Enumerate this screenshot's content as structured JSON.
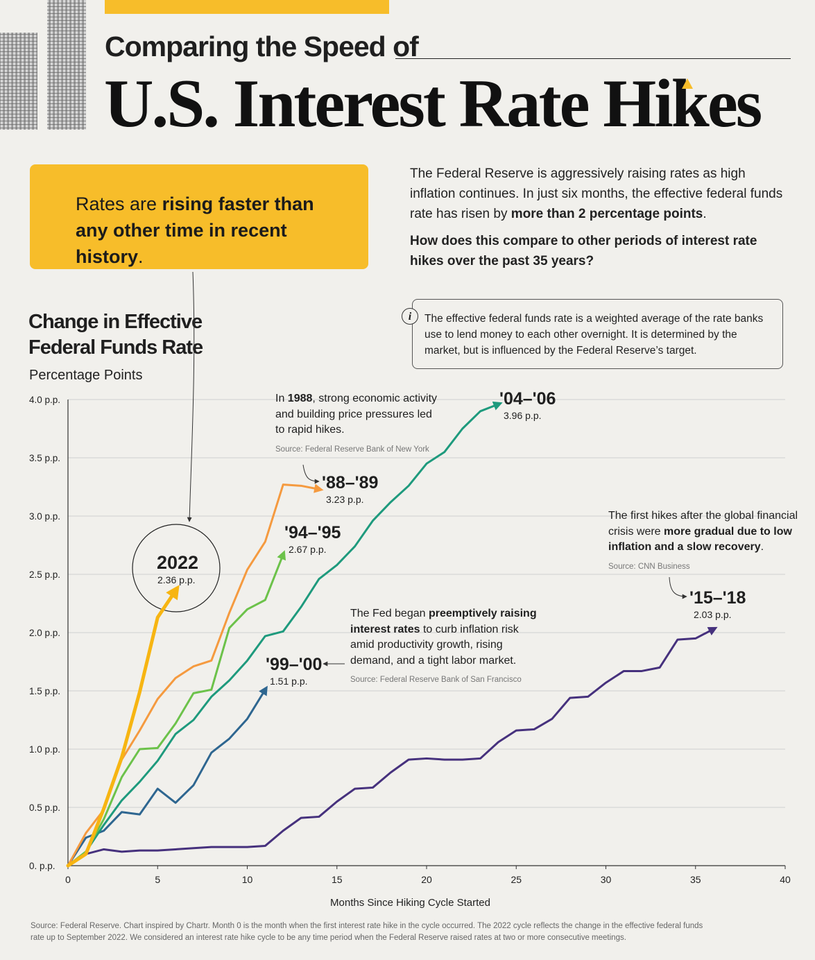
{
  "header": {
    "subtitle": "Comparing the Speed of",
    "title": "U.S. Interest Rate Hikes"
  },
  "callout": {
    "pre": "Rates are ",
    "bold": "rising faster than any other time in recent history",
    "post": "."
  },
  "intro": {
    "p1_pre": "The Federal Reserve is aggressively raising rates as high inflation continues. In just six months, the effective federal funds rate has risen by ",
    "p1_bold": "more than 2 percentage points",
    "p1_post": ".",
    "question": "How does this compare to other periods of interest rate hikes over the past 35 years?"
  },
  "info": {
    "icon": "i",
    "text": "The effective federal funds rate is a weighted average of the rate banks use to lend money to each other overnight. It is determined by the market, but is influenced by the Federal Reserve’s target."
  },
  "chart_title": {
    "line1": "Change in Effective",
    "line2": "Federal Funds Rate",
    "unit": "Percentage Points"
  },
  "annotations": {
    "y1988": {
      "pre": "In ",
      "bold": "1988",
      "post": ", strong economic activity and building price pressures led to rapid hikes.",
      "source": "Source: Federal Reserve Bank of New York"
    },
    "y1999": {
      "pre": "The Fed began ",
      "bold": "preemptively raising interest rates",
      "post": " to curb inflation risk amid productivity growth, rising demand, and a tight labor market.",
      "source": "Source: Federal Reserve Bank of San Francisco"
    },
    "y2015": {
      "pre": "The first hikes after the global financial crisis were ",
      "bold": "more gradual due to low inflation and a slow recovery",
      "post": ".",
      "source": "Source: CNN Business"
    }
  },
  "colors": {
    "c2022": "#f7b512",
    "c1988": "#f59a3f",
    "c1994": "#6cc24a",
    "c2004": "#1e9a7d",
    "c1999": "#2e6690",
    "c2015": "#46317d",
    "accent": "#f7bd2a",
    "grid": "#cfcfcf",
    "axis": "#333333"
  },
  "chart_data": {
    "type": "line",
    "title": "Change in Effective Federal Funds Rate",
    "ylabel": "Percentage Points",
    "xlabel": "Months Since Hiking Cycle Started",
    "xlim": [
      0,
      40
    ],
    "ylim": [
      0,
      4
    ],
    "x_ticks": [
      0,
      5,
      10,
      15,
      20,
      25,
      30,
      35,
      40
    ],
    "x_tick_labels": [
      "0",
      "5",
      "10",
      "15",
      "20",
      "25",
      "30",
      "35",
      "40"
    ],
    "y_ticks": [
      0,
      0.5,
      1,
      1.5,
      2,
      2.5,
      3,
      3.5,
      4
    ],
    "y_tick_labels": [
      "0. p.p.",
      "0.5 p.p.",
      "1.0 p.p.",
      "1.5 p.p.",
      "2.0 p.p.",
      "2.5 p.p.",
      "3.0 p.p.",
      "3.5 p.p.",
      "4.0 p.p."
    ],
    "series": [
      {
        "name": "'15–'18",
        "label": "2.03 p.p.",
        "color_key": "c2015",
        "values": [
          0,
          0.1,
          0.14,
          0.12,
          0.13,
          0.13,
          0.14,
          0.15,
          0.16,
          0.16,
          0.16,
          0.17,
          0.3,
          0.41,
          0.42,
          0.55,
          0.66,
          0.67,
          0.8,
          0.91,
          0.92,
          0.91,
          0.91,
          0.92,
          1.06,
          1.16,
          1.17,
          1.26,
          1.44,
          1.45,
          1.57,
          1.67,
          1.67,
          1.7,
          1.94,
          1.95,
          2.03
        ]
      },
      {
        "name": "'99–'00",
        "label": "1.51 p.p.",
        "color_key": "c1999",
        "values": [
          0,
          0.24,
          0.3,
          0.46,
          0.44,
          0.66,
          0.54,
          0.69,
          0.97,
          1.09,
          1.26,
          1.51
        ]
      },
      {
        "name": "'04–'06",
        "label": "3.96 p.p.",
        "color_key": "c2004",
        "values": [
          0,
          0.12,
          0.35,
          0.56,
          0.72,
          0.9,
          1.13,
          1.25,
          1.45,
          1.59,
          1.76,
          1.97,
          2.01,
          2.22,
          2.46,
          2.58,
          2.74,
          2.96,
          3.12,
          3.26,
          3.45,
          3.55,
          3.75,
          3.9,
          3.96
        ]
      },
      {
        "name": "'94–'95",
        "label": "2.67 p.p.",
        "color_key": "c1994",
        "values": [
          0,
          0.12,
          0.4,
          0.76,
          1.0,
          1.01,
          1.22,
          1.48,
          1.51,
          2.04,
          2.2,
          2.28,
          2.67
        ]
      },
      {
        "name": "'88–'89",
        "label": "3.23 p.p.",
        "color_key": "c1988",
        "values": [
          0,
          0.28,
          0.48,
          0.91,
          1.16,
          1.43,
          1.61,
          1.71,
          1.76,
          2.17,
          2.54,
          2.78,
          3.27,
          3.26,
          3.23
        ]
      },
      {
        "name": "2022",
        "label": "2.36 p.p.",
        "color_key": "c2022",
        "values": [
          0,
          0.1,
          0.49,
          0.93,
          1.49,
          2.13,
          2.36
        ]
      }
    ]
  }
}
